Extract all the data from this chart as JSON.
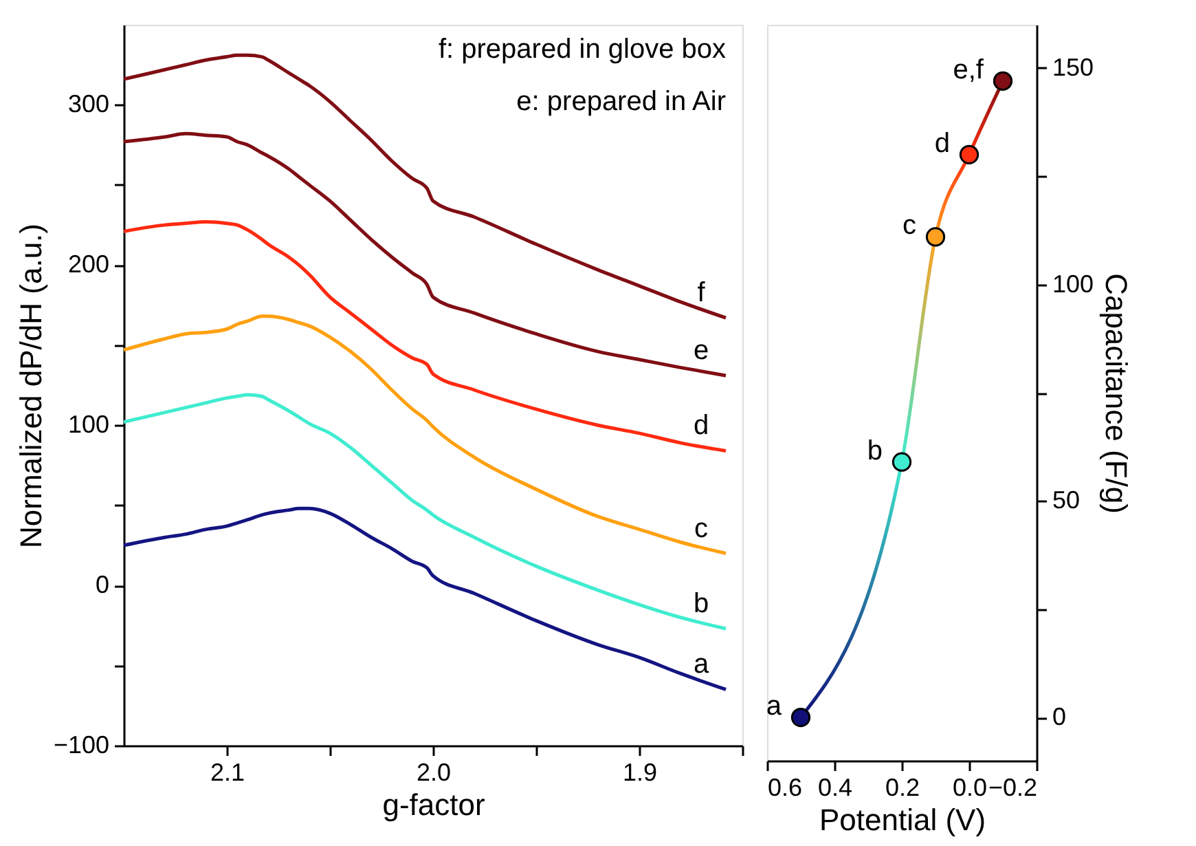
{
  "chart_data": [
    {
      "type": "line",
      "xlabel": "g-factor",
      "ylabel": "Normalized dP/dH (a.u.)",
      "xlim": [
        2.15,
        1.85
      ],
      "xticks": [
        2.1,
        {
          "value": 2.05,
          "label": null
        },
        {
          "value": 2.0,
          "label": "2.0"
        },
        {
          "value": 1.95,
          "label": null
        },
        1.9,
        {
          "value": 1.85,
          "label": null
        }
      ],
      "ylim": [
        -100,
        350
      ],
      "yticks": [
        {
          "value": -100,
          "label": "−100"
        },
        {
          "value": -50,
          "label": null
        },
        0,
        {
          "value": 50,
          "label": null
        },
        100,
        {
          "value": 150,
          "label": null
        },
        200,
        {
          "value": 250,
          "label": null
        },
        300
      ],
      "x": [
        2.15,
        2.13,
        2.12,
        2.11,
        2.1,
        2.095,
        2.09,
        2.083,
        2.08,
        2.07,
        2.065,
        2.06,
        2.05,
        2.04,
        2.03,
        2.02,
        2.01,
        2.003,
        2.0,
        1.98,
        1.95,
        1.92,
        1.9,
        1.88,
        1.858
      ],
      "series": [
        {
          "name": "a",
          "color": "#141482",
          "values": [
            25,
            30,
            32,
            35,
            37,
            39,
            41,
            44,
            45,
            47,
            48,
            48,
            45,
            38,
            30,
            23,
            15,
            11,
            6,
            -5,
            -22,
            -37,
            -45,
            -55,
            -65
          ]
        },
        {
          "name": "b",
          "color": "#40ecd0",
          "values": [
            102,
            108,
            111,
            114,
            117,
            118,
            119,
            118,
            116,
            109,
            105,
            101,
            95,
            86,
            75,
            64,
            53,
            47,
            44,
            30,
            12,
            -3,
            -12,
            -20,
            -27
          ]
        },
        {
          "name": "c",
          "color": "#ffa010",
          "values": [
            147,
            154,
            157,
            158,
            160,
            163,
            165,
            168,
            168,
            166,
            164,
            162,
            155,
            146,
            135,
            122,
            110,
            103,
            99,
            80,
            60,
            43,
            35,
            27,
            20
          ]
        },
        {
          "name": "d",
          "color": "#ff2a10",
          "values": [
            221,
            225,
            226,
            227,
            226,
            225,
            222,
            216,
            213,
            205,
            200,
            194,
            180,
            170,
            160,
            150,
            142,
            138,
            132,
            122,
            110,
            100,
            95,
            89,
            84
          ]
        },
        {
          "name": "e",
          "color": "#800e14",
          "values": [
            277,
            280,
            282,
            281,
            280,
            277,
            275,
            270,
            268,
            260,
            255,
            250,
            240,
            228,
            216,
            205,
            195,
            188,
            180,
            170,
            157,
            146,
            141,
            136,
            131
          ]
        },
        {
          "name": "f",
          "color": "#800e14",
          "values": [
            316,
            322,
            325,
            328,
            330,
            331,
            331,
            330,
            328,
            320,
            316,
            312,
            302,
            290,
            278,
            265,
            254,
            248,
            240,
            230,
            213,
            197,
            187,
            177,
            167
          ]
        }
      ],
      "annotations": [
        "f: prepared in glove box",
        "e: prepared in Air"
      ]
    },
    {
      "type": "line",
      "xlabel": "Potential (V)",
      "y2label": "Capacitance (F/g)",
      "xlim": [
        0.6,
        -0.2
      ],
      "xticks": [
        0.6,
        0.4,
        0.2,
        {
          "value": 0,
          "label": "0.0"
        },
        {
          "value": -0.2,
          "label": "−0.2"
        }
      ],
      "y2lim": [
        -10,
        160
      ],
      "y2ticks": [
        0,
        {
          "value": 25,
          "label": null
        },
        50,
        {
          "value": 75,
          "label": null
        },
        100,
        {
          "value": 125,
          "label": null
        },
        150
      ],
      "x": [
        0.5,
        0.2,
        0.1,
        0.0,
        -0.1
      ],
      "marker": "circle",
      "series": [
        {
          "axis": "y2",
          "values": [
            0,
            59,
            111,
            130,
            147
          ],
          "colors": [
            "#101078",
            "#40ecd0",
            "#ffa020",
            "#ff3010",
            "#800e14"
          ],
          "value_labels": [
            "a",
            "b",
            "c",
            "d",
            "e,f"
          ]
        }
      ]
    }
  ]
}
